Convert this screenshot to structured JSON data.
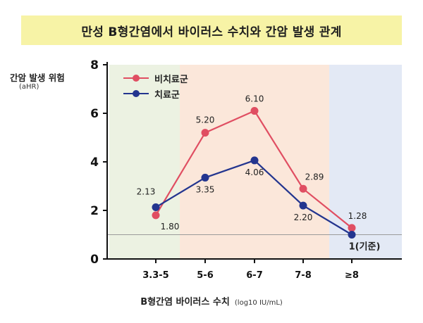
{
  "header": {
    "title": "만성 B형간염에서 바이러스 수치와 간암 발생 관계"
  },
  "axes": {
    "ylabel": "간암 발생 위험",
    "ylabel_sub": "(aHR)",
    "xlabel": "B형간염 바이러스 수치",
    "xlabel_unit": "(log10 IU/mL)"
  },
  "colors": {
    "untreated": "#e04e62",
    "treated": "#23358f",
    "band_green": "#ecf2e2",
    "band_orange": "#fbe7da",
    "band_blue": "#e3e9f5",
    "reference_line": "#9a9a9a",
    "title_bg": "#f7f3a6"
  },
  "chart_data": {
    "type": "line",
    "title": "만성 B형간염에서 바이러스 수치와 간암 발생 관계",
    "xlabel": "B형간염 바이러스 수치 (log10 IU/mL)",
    "ylabel": "간암 발생 위험 (aHR)",
    "categories": [
      "3.3-5",
      "5-6",
      "6-7",
      "7-8",
      "≥8"
    ],
    "ylim": [
      0,
      8
    ],
    "yticks": [
      "0",
      "2",
      "4",
      "6",
      "8"
    ],
    "grid": false,
    "legend": "top-left",
    "reference_value": 1,
    "series": [
      {
        "name": "비치료군",
        "values": [
          1.8,
          5.2,
          6.1,
          2.89,
          1.28
        ],
        "labels": [
          "1.80",
          "5.20",
          "6.10",
          "2.89",
          "1.28"
        ]
      },
      {
        "name": "치료군",
        "values": [
          2.13,
          3.35,
          4.06,
          2.2,
          1.0
        ],
        "labels": [
          "2.13",
          "3.35",
          "4.06",
          "2.20",
          "1(기준)"
        ]
      }
    ],
    "background_bands": [
      "green",
      "orange",
      "blue"
    ]
  }
}
